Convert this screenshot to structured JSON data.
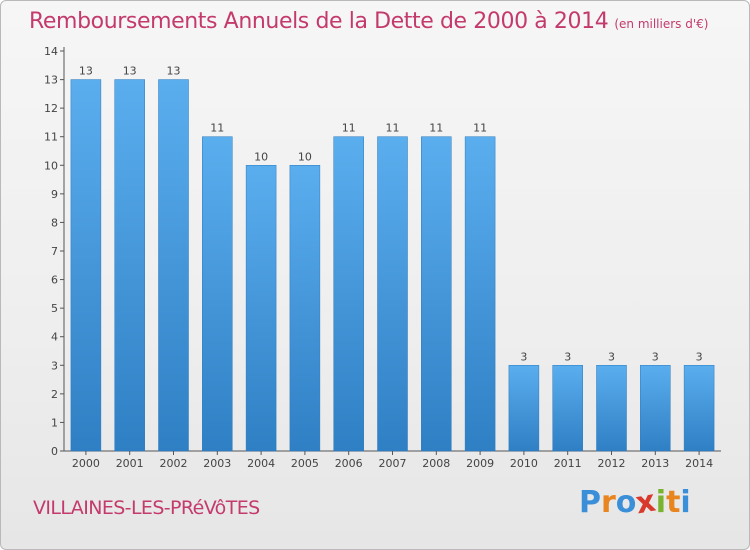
{
  "chart_data": {
    "type": "bar",
    "title": "Remboursements Annuels de la Dette de 2000 à 2014",
    "unit_note": "(en milliers d'€)",
    "categories": [
      "2000",
      "2001",
      "2002",
      "2003",
      "2004",
      "2005",
      "2006",
      "2007",
      "2008",
      "2009",
      "2010",
      "2011",
      "2012",
      "2013",
      "2014"
    ],
    "values": [
      13,
      13,
      13,
      11,
      10,
      10,
      11,
      11,
      11,
      11,
      3,
      3,
      3,
      3,
      3
    ],
    "data_labels": [
      "13",
      "13",
      "13",
      "11",
      "10",
      "10",
      "11",
      "11",
      "11",
      "11",
      "3",
      "3",
      "3",
      "3",
      "3"
    ],
    "y_ticks": [
      "0",
      "1",
      "2",
      "3",
      "4",
      "5",
      "6",
      "7",
      "8",
      "9",
      "10",
      "11",
      "12",
      "13",
      "14"
    ],
    "ylim": [
      0,
      14
    ],
    "xlabel": "",
    "ylabel": "",
    "grid": false,
    "bar_color": "#4a9fe0"
  },
  "location": "VILLAINES-LES-PRéVôTES",
  "brand": {
    "letters": [
      "P",
      "r",
      "o",
      "x",
      "i",
      "t",
      "i"
    ],
    "colors": [
      "#3a8fd8",
      "#e8851f",
      "#3a8fd8",
      "#d8392c",
      "#7ab32e",
      "#e8851f",
      "#3a8fd8"
    ]
  }
}
